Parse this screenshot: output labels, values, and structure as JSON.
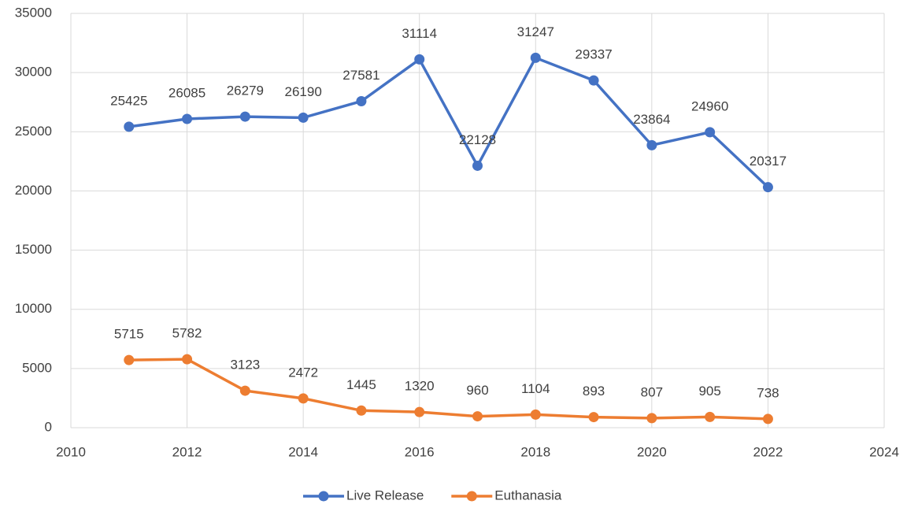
{
  "chart_data": {
    "type": "line",
    "x": [
      2011,
      2012,
      2013,
      2014,
      2015,
      2016,
      2017,
      2018,
      2019,
      2020,
      2021,
      2022
    ],
    "series": [
      {
        "name": "Live Release",
        "color": "#4472c4",
        "values": [
          25425,
          26085,
          26279,
          26190,
          27581,
          31114,
          22128,
          31247,
          29337,
          23864,
          24960,
          20317
        ]
      },
      {
        "name": "Euthanasia",
        "color": "#ed7d31",
        "values": [
          5715,
          5782,
          3123,
          2472,
          1445,
          1320,
          960,
          1104,
          893,
          807,
          905,
          738
        ]
      }
    ],
    "xlim": [
      2010,
      2024
    ],
    "xticks": [
      2010,
      2012,
      2014,
      2016,
      2018,
      2020,
      2022,
      2024
    ],
    "ylim": [
      0,
      35000
    ],
    "yticks": [
      0,
      5000,
      10000,
      15000,
      20000,
      25000,
      30000,
      35000
    ],
    "grid": true,
    "legend": "bottom"
  }
}
